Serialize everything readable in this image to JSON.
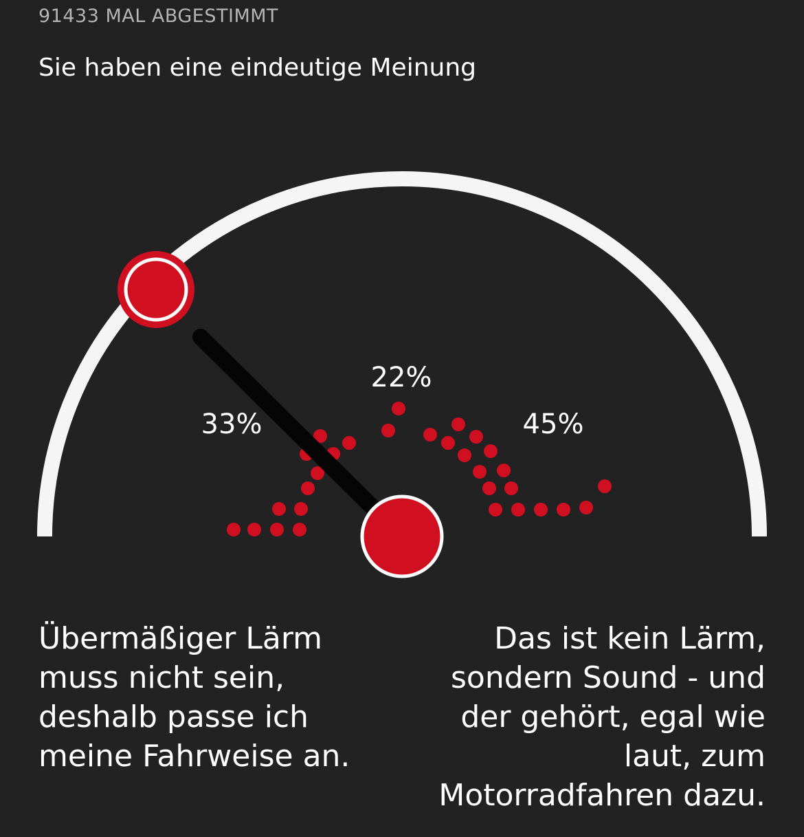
{
  "vote_count_text": "91433 MAL ABGESTIMMT",
  "result_heading": "Sie haben eine eindeutige Meinung",
  "colors": {
    "background": "#222222",
    "accent_red": "#d01020",
    "arc_white": "#f5f5f5",
    "needle_black": "#050505"
  },
  "results": {
    "left_pct": "33%",
    "middle_pct": "22%",
    "right_pct": "45%"
  },
  "answers": {
    "left": "Übermäßiger Lärm muss nicht sein, deshalb passe ich meine Fahrweise an.",
    "right": "Das ist kein Lärm, sondern Sound - und der gehört, egal wie laut, zum Motorradfahren dazu."
  },
  "chart_data": {
    "type": "gauge-poll",
    "series": [
      {
        "label": "Übermäßiger Lärm muss nicht sein, deshalb passe ich meine Fahrweise an.",
        "value": 33
      },
      {
        "label": "",
        "value": 22
      },
      {
        "label": "Das ist kein Lärm, sondern Sound - und der gehört, egal wie laut, zum Motorradfahren dazu.",
        "value": 45
      }
    ],
    "selected_answer_icon": "red-knob-icon"
  }
}
